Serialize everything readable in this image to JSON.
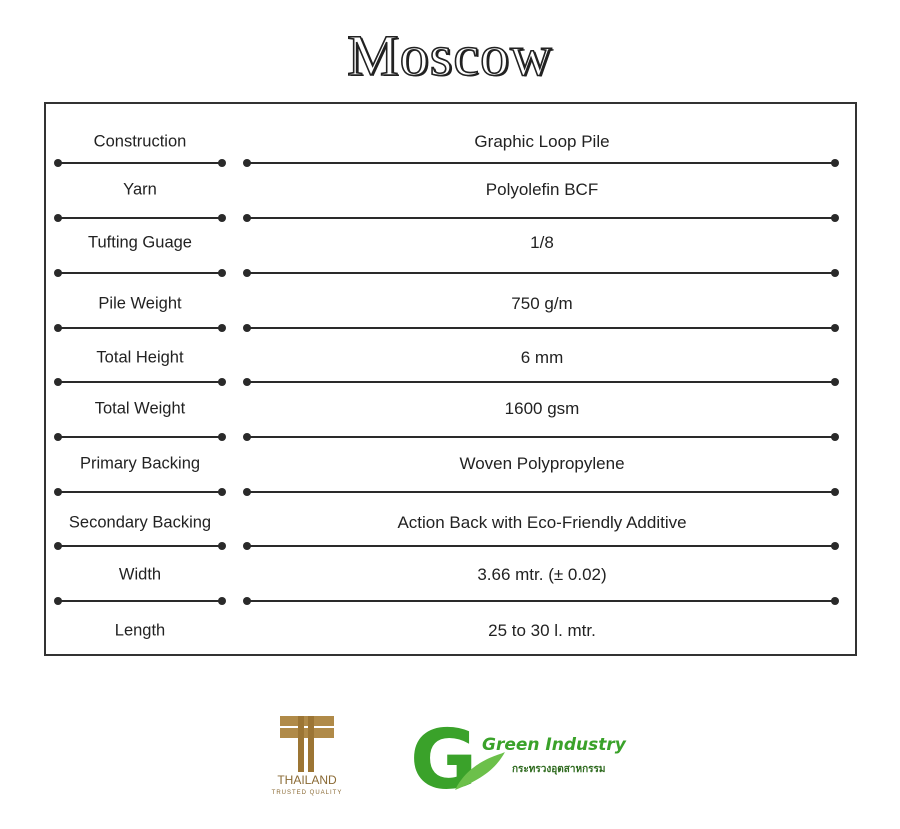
{
  "title": "Moscow",
  "specs": [
    {
      "label": "Construction",
      "value": "Graphic Loop Pile"
    },
    {
      "label": "Yarn",
      "value": "Polyolefin BCF"
    },
    {
      "label": "Tufting Guage",
      "value": "1/8"
    },
    {
      "label": "Pile Weight",
      "value": "750 g/m"
    },
    {
      "label": "Total Height",
      "value": "6 mm"
    },
    {
      "label": "Total  Weight",
      "value": "1600 gsm"
    },
    {
      "label": "Primary Backing",
      "value": "Woven Polypropylene"
    },
    {
      "label": "Secondary Backing",
      "value": "Action Back with Eco-Friendly Additive"
    },
    {
      "label": "Width",
      "value": "3.66 mtr. (± 0.02)"
    },
    {
      "label": "Length",
      "value": "25 to 30 l. mtr."
    }
  ],
  "logos": {
    "thailand": {
      "name": "THAILAND",
      "tagline": "TRUSTED QUALITY",
      "color": "#a8803e"
    },
    "green_industry": {
      "name": "Green Industry",
      "thai": "กระทรวงอุตสาหกรรม",
      "color": "#3aa22a"
    }
  }
}
